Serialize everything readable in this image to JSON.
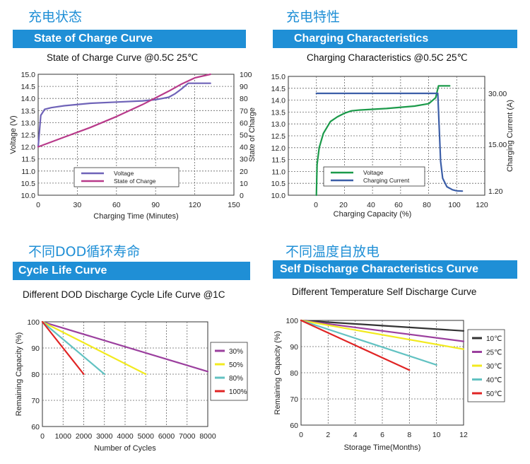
{
  "panels": [
    {
      "cn_title": "充电状态",
      "band": "State of Charge Curve",
      "subtitle": "State of Charge Curve @0.5C 25℃"
    },
    {
      "cn_title": "充电特性",
      "band": "Charging Characteristics",
      "subtitle": "Charging Characteristics @0.5C 25℃"
    },
    {
      "cn_title": "不同DOD循环寿命",
      "band": "Cycle Life Curve",
      "subtitle": "Different DOD Discharge Cycle Life Curve @1C"
    },
    {
      "cn_title": "不同温度自放电",
      "band": "Self Discharge Characteristics Curve",
      "subtitle": "Different Temperature Self Discharge Curve"
    }
  ],
  "colors": {
    "brand": "#1f8fd6",
    "band_text": "#ffffff"
  },
  "chart_data": [
    {
      "type": "line",
      "xlabel": "Charging Time (Minutes)",
      "ylabel": "Voltage (V)",
      "y2label": "State of Charge",
      "xlim": [
        0,
        150
      ],
      "xticks": [
        "0",
        "30",
        "60",
        "90",
        "120",
        "150"
      ],
      "ylim": [
        10.0,
        15.0
      ],
      "yticks": [
        "10.0",
        "10.5",
        "11.0",
        "11.5",
        "12.0",
        "12.5",
        "13.0",
        "13.5",
        "14.0",
        "14.5",
        "15.0"
      ],
      "y2lim": [
        0,
        100
      ],
      "y2ticks": [
        "0",
        "10",
        "20",
        "30",
        "40",
        "50",
        "60",
        "70",
        "80",
        "90",
        "100"
      ],
      "grid": true,
      "legend_position": "bottom-center",
      "series": [
        {
          "name": "Voltage",
          "color": "#6f63b8",
          "axis": "left",
          "x": [
            0,
            2,
            5,
            10,
            20,
            40,
            60,
            80,
            90,
            100,
            105,
            110,
            115,
            116,
            125,
            132
          ],
          "y": [
            12.0,
            13.3,
            13.55,
            13.62,
            13.7,
            13.8,
            13.85,
            13.9,
            13.95,
            14.05,
            14.2,
            14.4,
            14.63,
            14.63,
            14.63,
            14.63
          ]
        },
        {
          "name": "State of Charge",
          "color": "#b83a8a",
          "axis": "right",
          "x": [
            0,
            20,
            40,
            60,
            80,
            100,
            110,
            120,
            132
          ],
          "y": [
            40,
            48,
            56,
            65,
            75,
            86,
            92,
            97,
            100
          ]
        }
      ]
    },
    {
      "type": "line",
      "xlabel": "Charging Capacity (%)",
      "ylabel": "",
      "y2label": "Charging Current (A)",
      "xlim": [
        -20,
        120
      ],
      "xticks": [
        "0",
        "20",
        "40",
        "60",
        "80",
        "100",
        "120"
      ],
      "ylim": [
        10.0,
        15.0
      ],
      "yticks": [
        "10.0",
        "10.5",
        "11.0",
        "11.5",
        "12.0",
        "12.5",
        "13.0",
        "13.5",
        "14.0",
        "14.5",
        "15.0"
      ],
      "y2lim": [
        0,
        35
      ],
      "y2ticks": [
        "30.00",
        "15.00",
        "1.20"
      ],
      "y2tickvals": [
        30,
        15,
        1.2
      ],
      "grid": true,
      "legend_position": "bottom-center",
      "series": [
        {
          "name": "Voltage",
          "color": "#1b9a4a",
          "axis": "left",
          "x": [
            0,
            0.5,
            2,
            5,
            10,
            15,
            20,
            25,
            30,
            50,
            70,
            80,
            85,
            87,
            95
          ],
          "y": [
            10.0,
            11.3,
            12.0,
            12.6,
            13.1,
            13.3,
            13.45,
            13.55,
            13.58,
            13.65,
            13.75,
            13.85,
            14.1,
            14.6,
            14.6
          ]
        },
        {
          "name": "Charging Current",
          "color": "#3b5ea8",
          "axis": "right",
          "x": [
            0,
            20,
            40,
            60,
            80,
            85,
            86.5,
            87.5,
            88.5,
            90,
            93,
            97,
            100,
            104
          ],
          "y": [
            30,
            30,
            30,
            30,
            30,
            30,
            30,
            20,
            10,
            5,
            2.5,
            1.6,
            1.3,
            1.2
          ]
        }
      ]
    },
    {
      "type": "line",
      "xlabel": "Number of Cycles",
      "ylabel": "Remaining Capacity (%)",
      "xlim": [
        0,
        8000
      ],
      "xticks": [
        "0",
        "1000",
        "2000",
        "3000",
        "4000",
        "5000",
        "6000",
        "7000",
        "8000"
      ],
      "ylim": [
        60,
        100
      ],
      "yticks": [
        "60",
        "70",
        "80",
        "90",
        "100"
      ],
      "grid": true,
      "legend_position": "right",
      "series": [
        {
          "name": "30%",
          "color": "#9b3f9e",
          "x": [
            0,
            8000
          ],
          "y": [
            100,
            81
          ]
        },
        {
          "name": "50%",
          "color": "#f2ea1f",
          "x": [
            0,
            5000
          ],
          "y": [
            100,
            80
          ]
        },
        {
          "name": "80%",
          "color": "#62c2c2",
          "x": [
            0,
            3000
          ],
          "y": [
            100,
            80
          ]
        },
        {
          "name": "100%",
          "color": "#e02424",
          "x": [
            0,
            2000
          ],
          "y": [
            100,
            80
          ]
        }
      ]
    },
    {
      "type": "line",
      "xlabel": "Storage Time(Months)",
      "ylabel": "Remaining Capacity (%)",
      "xlim": [
        0,
        12
      ],
      "xticks": [
        "0",
        "2",
        "4",
        "6",
        "8",
        "10",
        "12"
      ],
      "ylim": [
        60,
        100
      ],
      "yticks": [
        "60",
        "70",
        "80",
        "90",
        "100"
      ],
      "grid": true,
      "legend_position": "right",
      "series": [
        {
          "name": "10℃",
          "color": "#333333",
          "x": [
            0,
            12
          ],
          "y": [
            100,
            96
          ]
        },
        {
          "name": "25℃",
          "color": "#9b3f9e",
          "x": [
            0,
            12
          ],
          "y": [
            100,
            92
          ]
        },
        {
          "name": "30℃",
          "color": "#f2ea1f",
          "x": [
            0,
            12
          ],
          "y": [
            100,
            89
          ]
        },
        {
          "name": "40℃",
          "color": "#62c2c2",
          "x": [
            0,
            10
          ],
          "y": [
            100,
            83
          ]
        },
        {
          "name": "50℃",
          "color": "#e02424",
          "x": [
            0,
            8
          ],
          "y": [
            100,
            81
          ]
        }
      ]
    }
  ]
}
